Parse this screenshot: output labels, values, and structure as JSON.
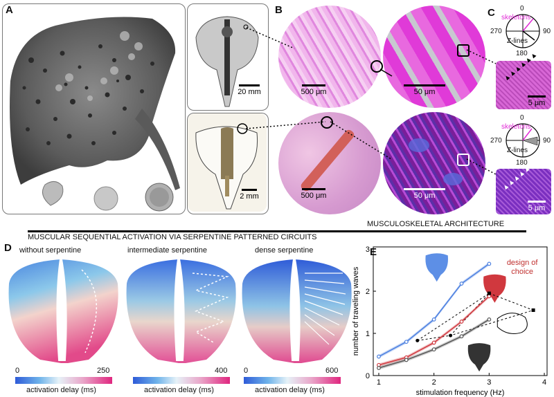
{
  "panels": {
    "A": "A",
    "B": "B",
    "C": "C",
    "D": "D",
    "E": "E"
  },
  "scalebars": {
    "a_top": "20 mm",
    "a_bottom": "2 mm",
    "b_top_left": "500 μm",
    "b_top_right": "50 μm",
    "b_bottom_left": "500 μm",
    "b_bottom_right": "50 μm",
    "c_top": "5 μm",
    "c_bottom": "5 μm"
  },
  "compass": {
    "top": {
      "n0": "0",
      "n90": "90",
      "n180": "180",
      "n270": "270",
      "skeletons": "skeletons",
      "zlines": "Z-lines"
    },
    "bottom": {
      "n0": "0",
      "n90": "90",
      "n180": "180",
      "n270": "270",
      "skeletons": "skeletons",
      "zlines": "Z-lines"
    }
  },
  "headers": {
    "musculoskeletal": "MUSCULOSKELETAL ARCHITECTURE",
    "muscular": "MUSCULAR SEQUENTIAL ACTIVATION VIA SERPENTINE PATTERNED CIRCUITS"
  },
  "panel_d": {
    "titles": [
      "without serpentine",
      "intermediate serpentine",
      "dense serpentine"
    ],
    "colorbars": [
      {
        "min": "0",
        "max": "250",
        "label": "activation delay (ms)"
      },
      {
        "min": "",
        "max": "400",
        "label": "activation delay (ms)"
      },
      {
        "min": "0",
        "max": "600",
        "label": "activation delay (ms)"
      }
    ]
  },
  "colors": {
    "blue": "#4a7fe0",
    "red": "#d0383e",
    "gray": "#555555"
  },
  "chart_data": {
    "type": "line",
    "xlabel": "stimulation frequency (Hz)",
    "ylabel": "number of traveling waves",
    "xlim": [
      0.9,
      4.05
    ],
    "ylim": [
      0,
      3.05
    ],
    "xticks": [
      "1",
      "2",
      "3",
      "4"
    ],
    "yticks": [
      "0",
      "1",
      "2",
      "3"
    ],
    "annotation": "design of choice",
    "series": [
      {
        "color": "#4a7fe0",
        "x": [
          1,
          1.5,
          2,
          2.5,
          3
        ],
        "y": [
          0.45,
          0.8,
          1.33,
          2.18,
          2.65
        ]
      },
      {
        "color": "#d0383e",
        "x": [
          1,
          1.5,
          2,
          2.5,
          3
        ],
        "y": [
          0.25,
          0.43,
          0.78,
          1.28,
          1.88
        ]
      },
      {
        "color": "#555555",
        "x": [
          1,
          1.5,
          2,
          2.5,
          3
        ],
        "y": [
          0.18,
          0.37,
          0.62,
          0.93,
          1.33
        ]
      }
    ],
    "markers": [
      {
        "x": 1.7,
        "y": 0.83
      },
      {
        "x": 3.0,
        "y": 1.95
      },
      {
        "x": 2.3,
        "y": 0.95
      },
      {
        "x": 3.8,
        "y": 1.55
      }
    ]
  }
}
